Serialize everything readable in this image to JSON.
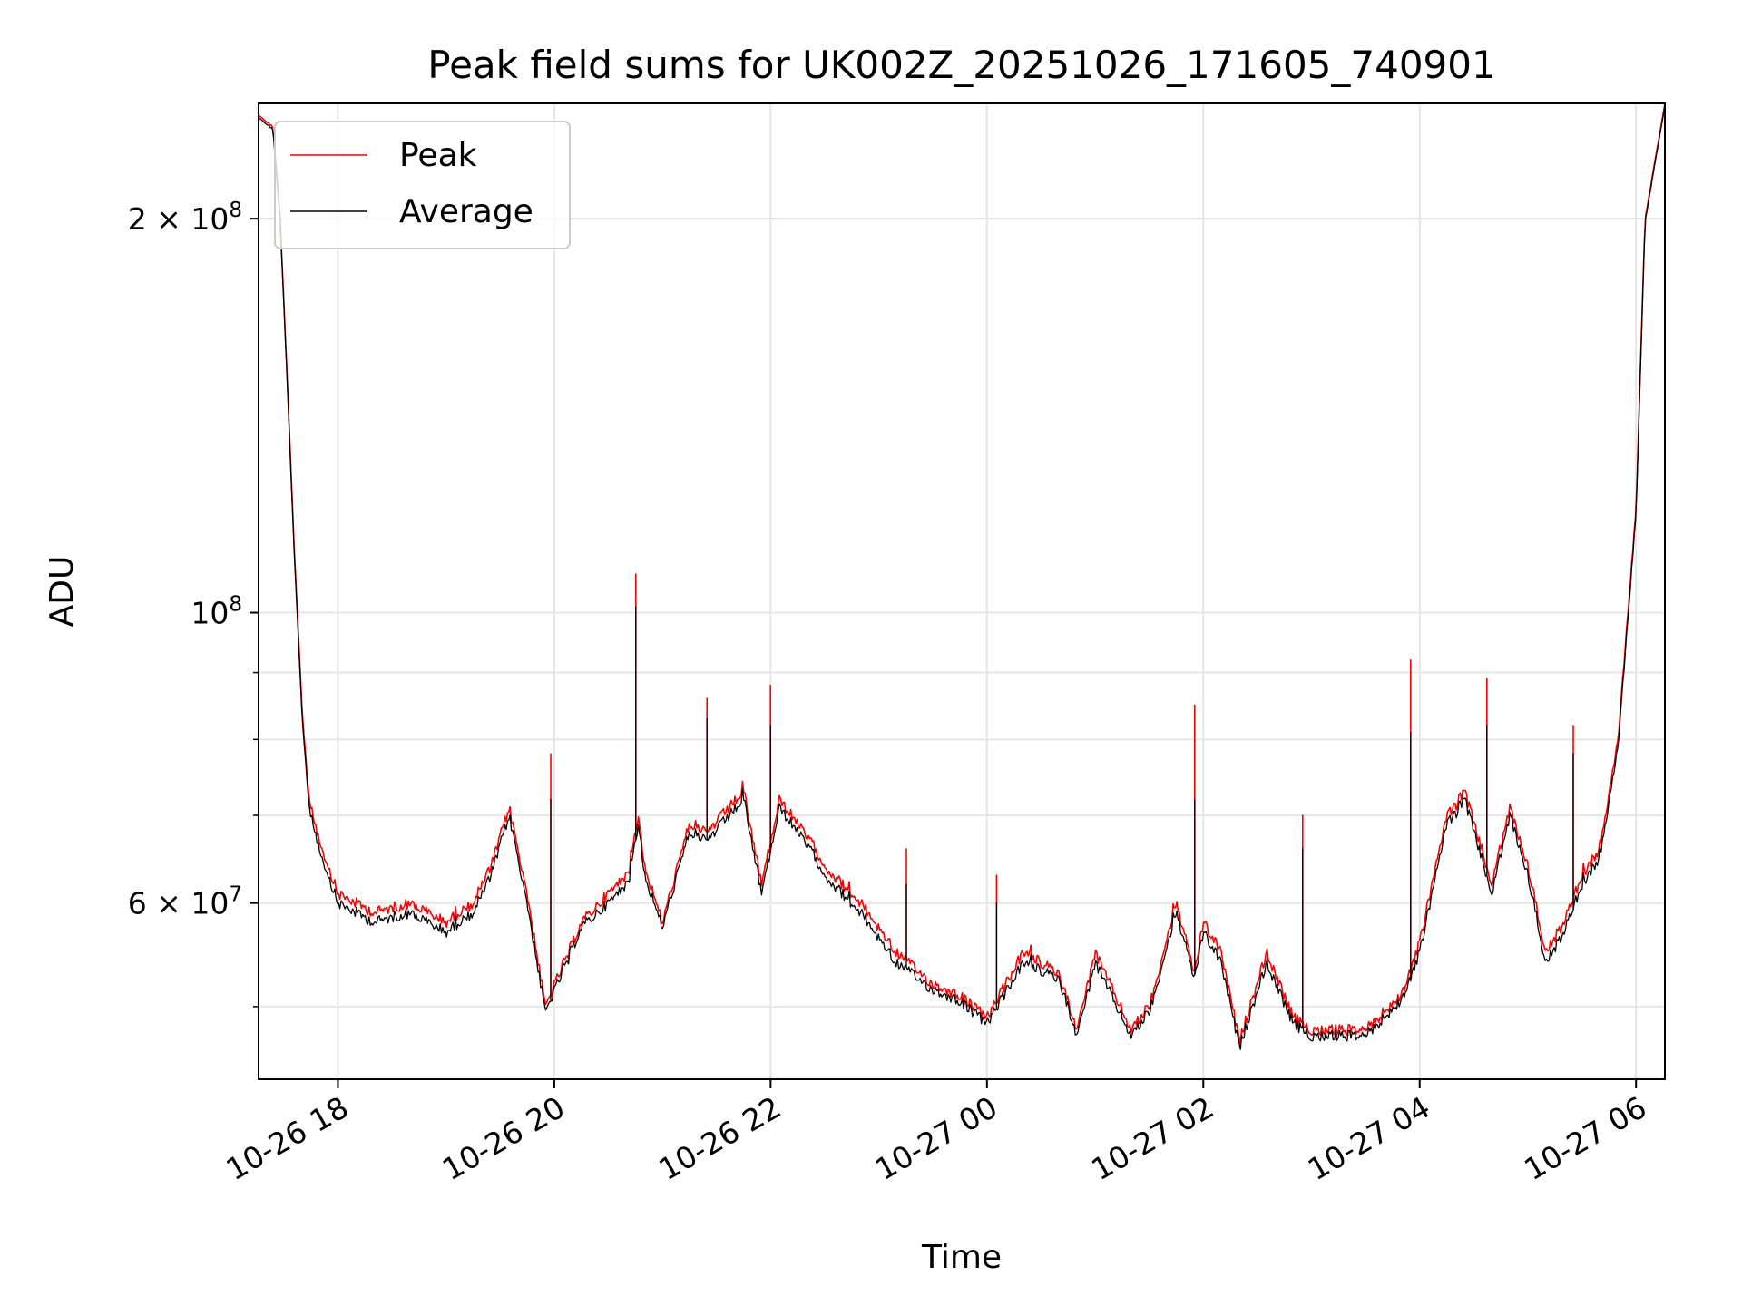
{
  "chart_data": {
    "type": "line",
    "title": "Peak field sums for UK002Z_20251026_171605_740901",
    "xlabel": "Time",
    "ylabel": "ADU",
    "y_scale": "log",
    "ylim": [
      44000000,
      245000000
    ],
    "xlim": [
      "2025-10-26 17:16",
      "2025-10-27 06:16"
    ],
    "grid": true,
    "legend": {
      "placement": "upper left"
    },
    "x_ticks": [
      "10-26 18",
      "10-26 20",
      "10-26 22",
      "10-27 00",
      "10-27 02",
      "10-27 04",
      "10-27 06"
    ],
    "y_ticks": [
      {
        "label_base": "2 × 10",
        "label_exp": "8",
        "value": 200000000
      },
      {
        "label_base": "10",
        "label_exp": "8",
        "value": 100000000
      },
      {
        "label_base": "6 × 10",
        "label_exp": "7",
        "value": 60000000
      }
    ],
    "x": [
      "2025-10-26 17:16",
      "2025-10-26 17:24",
      "2025-10-26 17:28",
      "2025-10-26 17:32",
      "2025-10-26 17:36",
      "2025-10-26 17:40",
      "2025-10-26 17:44",
      "2025-10-26 17:52",
      "2025-10-26 18:00",
      "2025-10-26 18:20",
      "2025-10-26 18:40",
      "2025-10-26 19:00",
      "2025-10-26 19:15",
      "2025-10-26 19:25",
      "2025-10-26 19:35",
      "2025-10-26 19:45",
      "2025-10-26 19:55",
      "2025-10-26 20:15",
      "2025-10-26 20:30",
      "2025-10-26 20:40",
      "2025-10-26 20:47",
      "2025-10-26 20:50",
      "2025-10-26 21:00",
      "2025-10-26 21:15",
      "2025-10-26 21:25",
      "2025-10-26 21:45",
      "2025-10-26 21:55",
      "2025-10-26 22:05",
      "2025-10-26 22:25",
      "2025-10-26 22:30",
      "2025-10-26 22:50",
      "2025-10-26 23:10",
      "2025-10-26 23:30",
      "2025-10-26 23:45",
      "2025-10-27 00:00",
      "2025-10-27 00:20",
      "2025-10-27 00:40",
      "2025-10-27 00:50",
      "2025-10-27 01:00",
      "2025-10-27 01:20",
      "2025-10-27 01:30",
      "2025-10-27 01:45",
      "2025-10-27 01:55",
      "2025-10-27 02:00",
      "2025-10-27 02:10",
      "2025-10-27 02:20",
      "2025-10-27 02:35",
      "2025-10-27 02:50",
      "2025-10-27 03:00",
      "2025-10-27 03:30",
      "2025-10-27 03:50",
      "2025-10-27 04:00",
      "2025-10-27 04:15",
      "2025-10-27 04:25",
      "2025-10-27 04:40",
      "2025-10-27 04:50",
      "2025-10-27 05:00",
      "2025-10-27 05:10",
      "2025-10-27 05:20",
      "2025-10-27 05:30",
      "2025-10-27 05:40",
      "2025-10-27 05:50",
      "2025-10-27 06:00",
      "2025-10-27 06:05",
      "2025-10-27 06:16"
    ],
    "series": [
      {
        "name": "Peak",
        "color": "#ff0000",
        "values": [
          240000000,
          235000000,
          200000000,
          150000000,
          110000000,
          85000000,
          72000000,
          65000000,
          61000000,
          59000000,
          60000000,
          58000000,
          60000000,
          64000000,
          71000000,
          61000000,
          50000000,
          58000000,
          61000000,
          63000000,
          70000000,
          64000000,
          58000000,
          69000000,
          68000000,
          73000000,
          62000000,
          72000000,
          66000000,
          64000000,
          60000000,
          55000000,
          52000000,
          51000000,
          49000000,
          55000000,
          53000000,
          48000000,
          55000000,
          48000000,
          50000000,
          60000000,
          53000000,
          58000000,
          55000000,
          47000000,
          55000000,
          49000000,
          48000000,
          48000000,
          51000000,
          56000000,
          70000000,
          73000000,
          62000000,
          71000000,
          64000000,
          55000000,
          58000000,
          63000000,
          66000000,
          80000000,
          120000000,
          200000000,
          245000000
        ]
      },
      {
        "name": "Average",
        "color": "#000000",
        "values": [
          239000000,
          234000000,
          199000000,
          149000000,
          109000000,
          84000000,
          71000000,
          64000000,
          60000000,
          58000000,
          59000000,
          57000000,
          59000000,
          63000000,
          70000000,
          60000000,
          49500000,
          57500000,
          60000000,
          62000000,
          69000000,
          63000000,
          57500000,
          68000000,
          67000000,
          72000000,
          61000000,
          71000000,
          65000000,
          63000000,
          59000000,
          54000000,
          51500000,
          50500000,
          48500000,
          54000000,
          52500000,
          47500000,
          54000000,
          47500000,
          49500000,
          59000000,
          52500000,
          57000000,
          54000000,
          46500000,
          54000000,
          48500000,
          47500000,
          47500000,
          50500000,
          55000000,
          69000000,
          72000000,
          61000000,
          70000000,
          63000000,
          54000000,
          57000000,
          62000000,
          65000000,
          79000000,
          119000000,
          199000000,
          244000000
        ]
      }
    ],
    "spikes": [
      {
        "x": "2025-10-26 19:58",
        "peak": 78000000,
        "average": 72000000
      },
      {
        "x": "2025-10-26 20:45",
        "peak": 107000000,
        "average": 101000000
      },
      {
        "x": "2025-10-26 21:25",
        "peak": 86000000,
        "average": 83000000
      },
      {
        "x": "2025-10-26 22:00",
        "peak": 88000000,
        "average": 82000000
      },
      {
        "x": "2025-10-26 23:15",
        "peak": 66000000,
        "average": 62000000
      },
      {
        "x": "2025-10-27 00:05",
        "peak": 63000000,
        "average": 60000000
      },
      {
        "x": "2025-10-27 01:55",
        "peak": 85000000,
        "average": 72000000
      },
      {
        "x": "2025-10-27 02:55",
        "peak": 70000000,
        "average": 66000000
      },
      {
        "x": "2025-10-27 03:55",
        "peak": 92000000,
        "average": 81000000
      },
      {
        "x": "2025-10-27 04:37",
        "peak": 89000000,
        "average": 82000000
      },
      {
        "x": "2025-10-27 05:25",
        "peak": 82000000,
        "average": 78000000
      }
    ]
  }
}
